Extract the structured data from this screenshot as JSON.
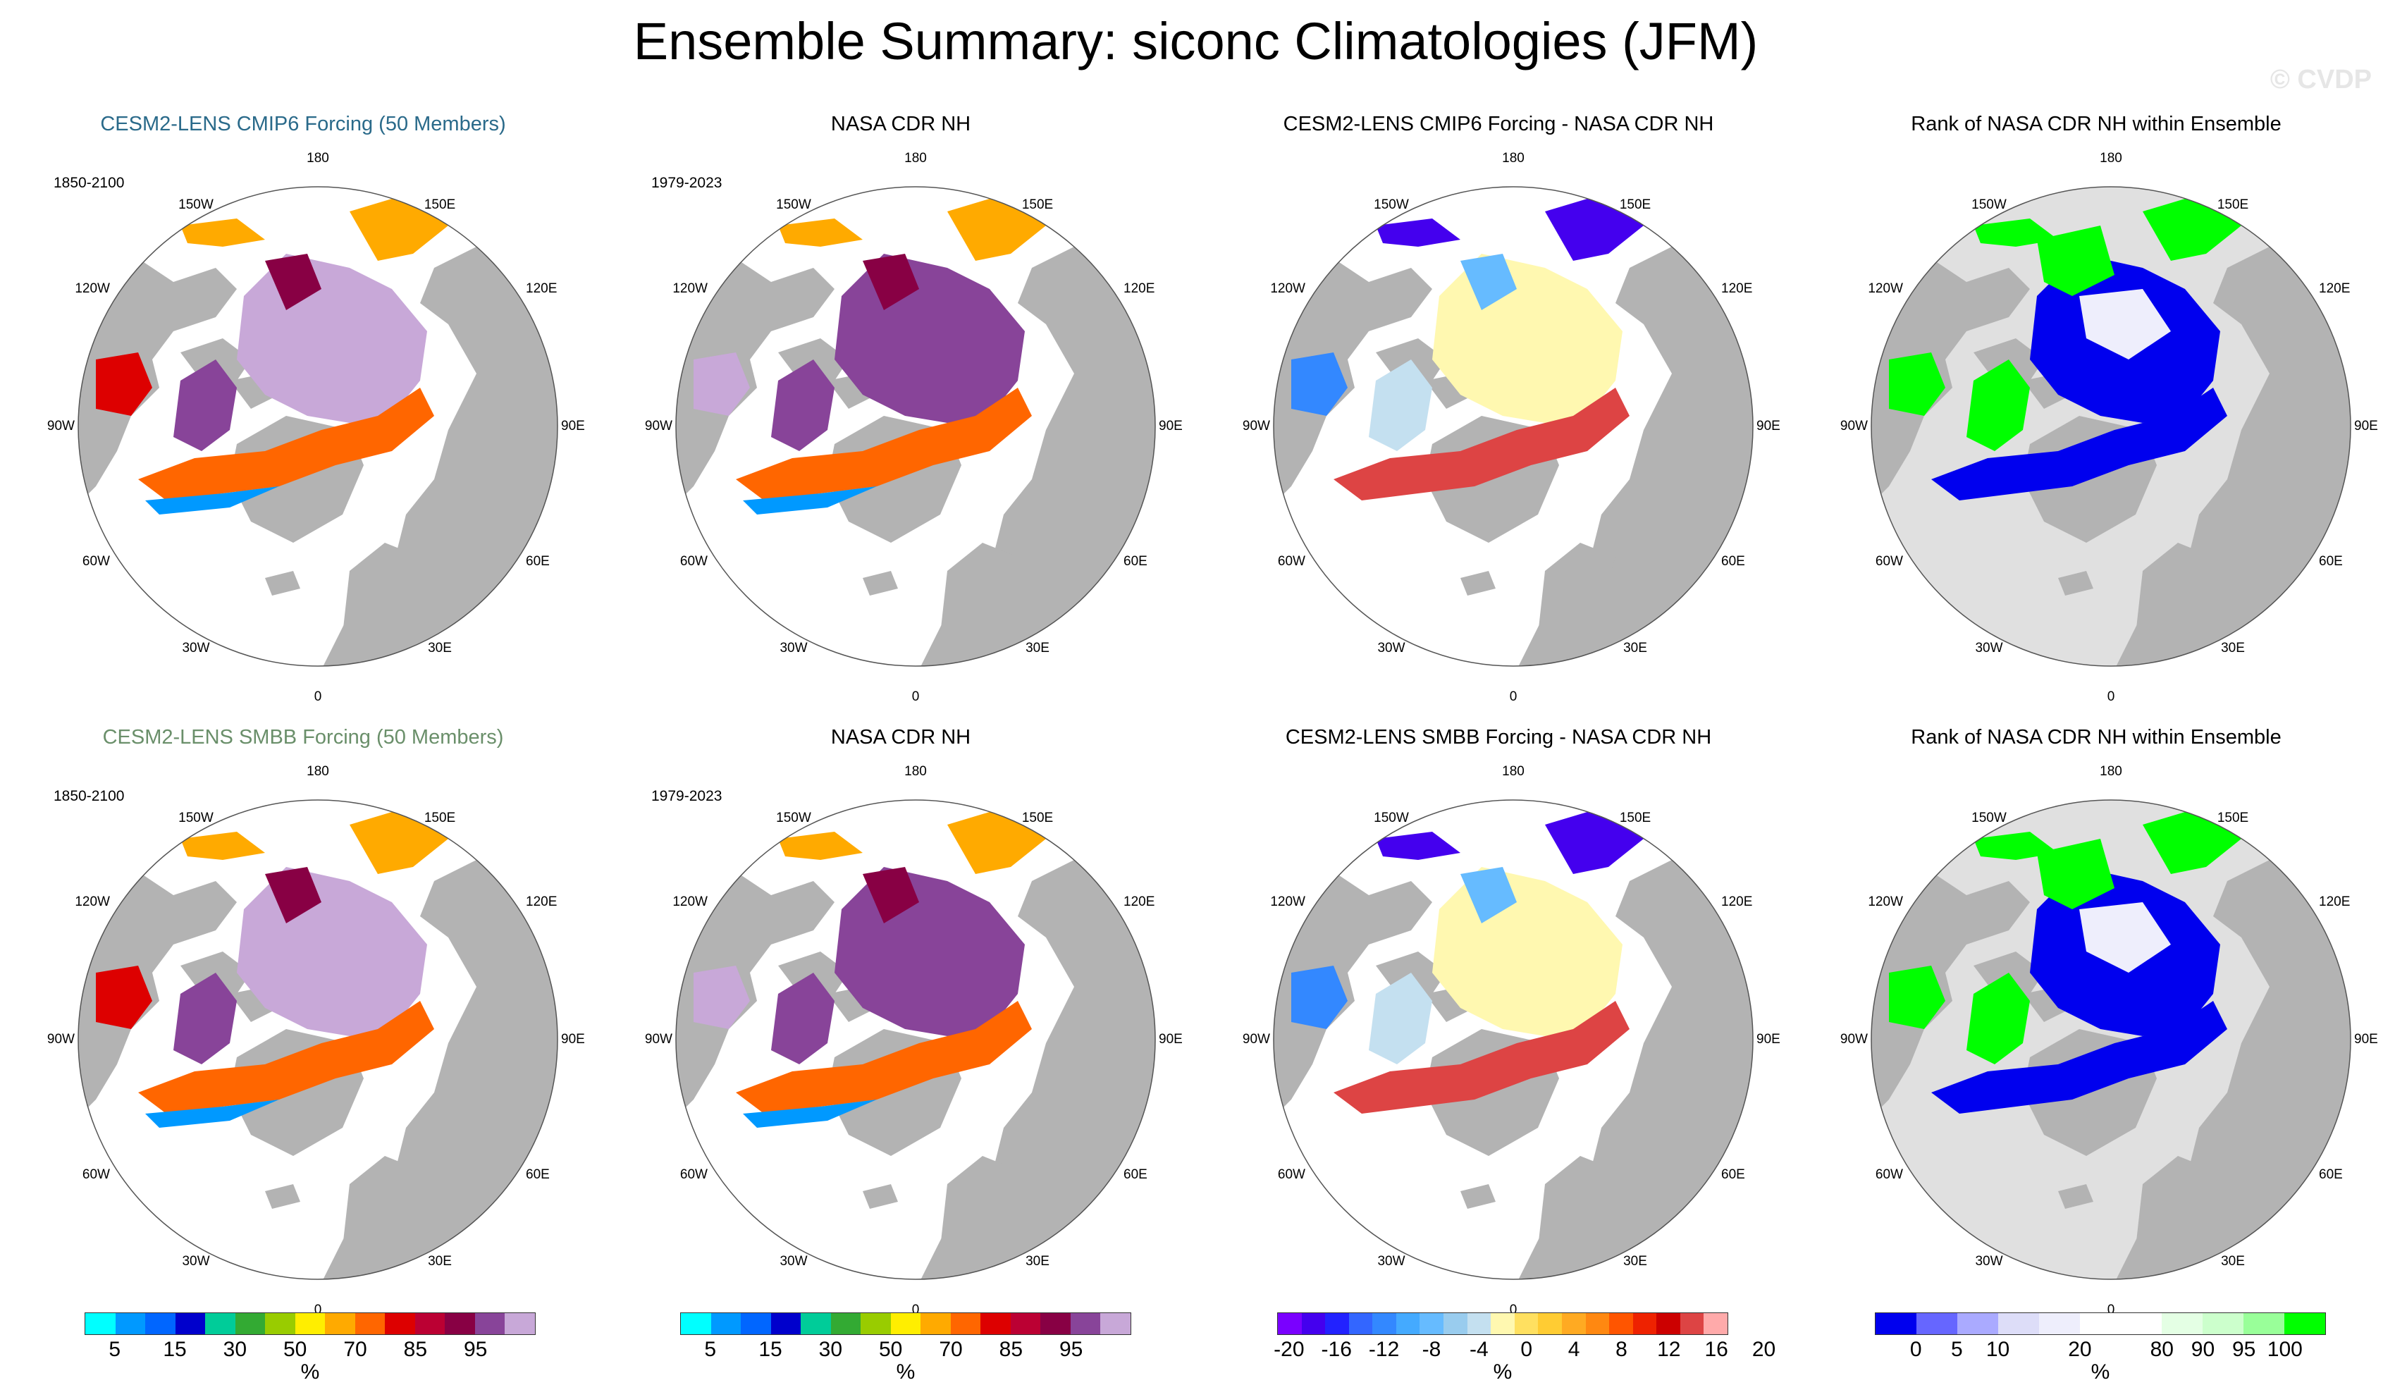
{
  "figure": {
    "title": "Ensemble Summary: siconc Climatologies (JFM)",
    "watermark": "© CVDP"
  },
  "colors": {
    "land": "#b3b3b3",
    "ocean": "#ffffff",
    "rank_ocean": "#e0e0e0",
    "title_row1": "#2a6a8a",
    "title_row2": "#6a8f6a"
  },
  "lon_labels": {
    "top": "180",
    "bottom": "0",
    "e150": "150E",
    "e120": "120E",
    "e90": "90E",
    "e60": "60E",
    "e30": "30E",
    "w150": "150W",
    "w120": "120W",
    "w90": "90W",
    "w60": "60W",
    "w30": "30W"
  },
  "panels": [
    {
      "title": "CESM2-LENS CMIP6 Forcing (50 Members)",
      "period": "1850-2100",
      "kind": "clim"
    },
    {
      "title": "NASA CDR NH",
      "period": "1979-2023",
      "kind": "obs"
    },
    {
      "title": "CESM2-LENS CMIP6 Forcing - NASA CDR NH",
      "period": "",
      "kind": "diff"
    },
    {
      "title": "Rank of NASA CDR NH within Ensemble",
      "period": "",
      "kind": "rank"
    },
    {
      "title": "CESM2-LENS SMBB Forcing (50 Members)",
      "period": "1850-2100",
      "kind": "clim"
    },
    {
      "title": "NASA CDR NH",
      "period": "1979-2023",
      "kind": "obs"
    },
    {
      "title": "CESM2-LENS SMBB Forcing - NASA CDR NH",
      "period": "",
      "kind": "diff"
    },
    {
      "title": "Rank of NASA CDR NH within Ensemble",
      "period": "",
      "kind": "rank"
    }
  ],
  "colorbars": [
    {
      "name": "concentration",
      "colors": [
        "#00ffff",
        "#0099ff",
        "#0066ff",
        "#0000cc",
        "#00cc99",
        "#33aa33",
        "#99cc00",
        "#ffee00",
        "#ffaa00",
        "#ff6600",
        "#dd0000",
        "#bb0033",
        "#880044",
        "#884499",
        "#c8a8d8"
      ],
      "ticks": [
        "5",
        "15",
        "30",
        "50",
        "70",
        "85",
        "95"
      ],
      "unit": "%"
    },
    {
      "name": "concentration",
      "colors": [
        "#00ffff",
        "#0099ff",
        "#0066ff",
        "#0000cc",
        "#00cc99",
        "#33aa33",
        "#99cc00",
        "#ffee00",
        "#ffaa00",
        "#ff6600",
        "#dd0000",
        "#bb0033",
        "#880044",
        "#884499",
        "#c8a8d8"
      ],
      "ticks": [
        "5",
        "15",
        "30",
        "50",
        "70",
        "85",
        "95"
      ],
      "unit": "%"
    },
    {
      "name": "difference",
      "colors": [
        "#7a00ff",
        "#4400ee",
        "#2222ff",
        "#3366ff",
        "#3388ff",
        "#44aaff",
        "#66bbff",
        "#99ccee",
        "#c4e0f0",
        "#fff8b0",
        "#ffe060",
        "#ffcc33",
        "#ffaa22",
        "#ff8811",
        "#ff5500",
        "#ee2200",
        "#cc0000",
        "#dd4444",
        "#ffaaaa"
      ],
      "ticks": [
        "-20",
        "-16",
        "-12",
        "-8",
        "-4",
        "0",
        "4",
        "8",
        "12",
        "16",
        "20"
      ],
      "unit": "%"
    },
    {
      "name": "rank",
      "colors": [
        "#0000ee",
        "#6666ff",
        "#aaaaff",
        "#ddddf8",
        "#eeeefc",
        "#ffffff",
        "#ffffff",
        "#e4ffe4",
        "#ccffcc",
        "#99ff99",
        "#00ff00"
      ],
      "ticks": [
        "0",
        "5",
        "10",
        "20",
        "80",
        "90",
        "95",
        "100"
      ],
      "unit": "%"
    }
  ]
}
